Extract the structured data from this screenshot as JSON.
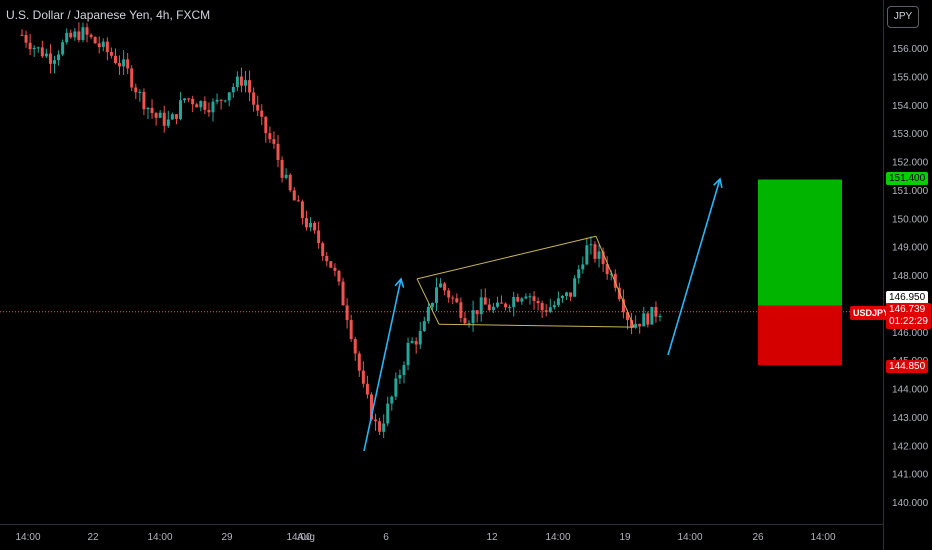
{
  "header": {
    "title": "U.S. Dollar / Japanese Yen, 4h, FXCM",
    "currency_button": "JPY"
  },
  "price_axis": {
    "ticks": [
      "156.000",
      "155.000",
      "154.000",
      "153.000",
      "152.000",
      "151.000",
      "150.000",
      "149.000",
      "148.000",
      "147.000",
      "146.000",
      "145.000",
      "144.000",
      "143.000",
      "142.000",
      "141.000",
      "140.000"
    ]
  },
  "time_axis": {
    "ticks": [
      "14:00",
      "22",
      "14:00",
      "29",
      "14:00",
      "Aug",
      "6",
      "12",
      "14:00",
      "19",
      "14:00",
      "26",
      "14:00"
    ]
  },
  "labels": {
    "take_profit": "151.400",
    "entry": "146.950",
    "stop_loss": "144.850",
    "symbol": "USDJPY",
    "last_price": "146.739",
    "countdown": "01:22:29"
  },
  "colors": {
    "up": "#26a69a",
    "down": "#ef5350",
    "profit_zone": "#00b400",
    "loss_zone": "#d40000",
    "pattern": "#c8b45a",
    "arrow": "#29b6f6",
    "price_line": "#ef5350"
  },
  "chart_data": {
    "type": "candlestick",
    "symbol": "USDJPY",
    "timeframe": "4h",
    "source": "FXCM",
    "ylim": [
      139.5,
      156.8
    ],
    "x_ticks": [
      "14:00",
      "22",
      "14:00",
      "29",
      "14:00",
      "Aug",
      "6",
      "12",
      "14:00",
      "19",
      "14:00",
      "26",
      "14:00"
    ],
    "approx_path": [
      156.5,
      156.0,
      155.7,
      156.3,
      156.6,
      156.2,
      155.8,
      155.3,
      154.3,
      153.6,
      153.4,
      154.3,
      154.1,
      154.0,
      154.6,
      155.0,
      153.5,
      152.5,
      151.0,
      150.0,
      149.2,
      148.2,
      146.5,
      144.0,
      142.5,
      143.8,
      145.5,
      146.0,
      147.8,
      147.2,
      146.5,
      147.0,
      146.8,
      147.2,
      147.5,
      146.8,
      147.0,
      147.4,
      149.0,
      148.6,
      147.8,
      146.3,
      146.5,
      146.8
    ],
    "last_price": 146.739,
    "position": {
      "entry": 146.95,
      "take_profit": 151.4,
      "stop_loss": 144.85
    },
    "pattern": {
      "upper": [
        147.9,
        149.4
      ],
      "lower": [
        146.3,
        146.2
      ]
    }
  }
}
